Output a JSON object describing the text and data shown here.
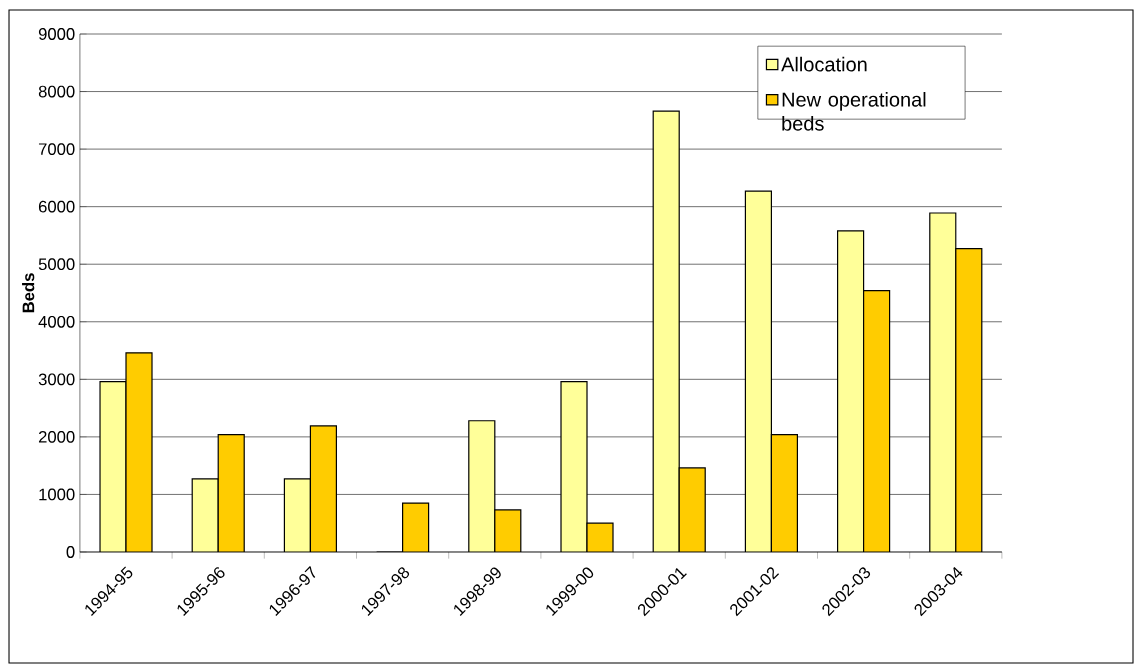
{
  "chart_data": {
    "type": "bar",
    "ylabel": "Beds",
    "categories": [
      "1994-95",
      "1995-96",
      "1996-97",
      "1997-98",
      "1998-99",
      "1999-00",
      "2000-01",
      "2001-02",
      "2002-03",
      "2003-04"
    ],
    "series": [
      {
        "name": "Allocation",
        "color": "#ffff99",
        "values": [
          2960,
          1270,
          1270,
          0,
          2280,
          2960,
          7660,
          6270,
          5580,
          5890
        ]
      },
      {
        "name": "New operational beds",
        "color": "#ffcc00",
        "values": [
          3460,
          2040,
          2190,
          850,
          730,
          500,
          1460,
          2040,
          4540,
          5270
        ]
      }
    ],
    "ylim": [
      0,
      9000
    ],
    "yticks": [
      0,
      1000,
      2000,
      3000,
      4000,
      5000,
      6000,
      7000,
      8000,
      9000
    ],
    "grid": "y",
    "legend": "top right"
  }
}
